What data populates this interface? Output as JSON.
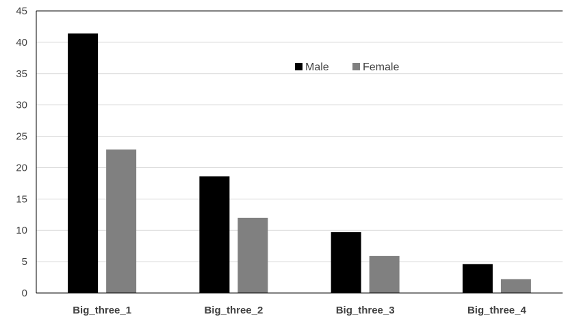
{
  "chart_data": {
    "type": "bar",
    "title": "",
    "xlabel": "",
    "ylabel": "",
    "categories": [
      "Big_three_1",
      "Big_three_2",
      "Big_three_3",
      "Big_three_4"
    ],
    "series": [
      {
        "name": "Male",
        "values": [
          41.4,
          18.6,
          9.7,
          4.6
        ],
        "color": "#000000"
      },
      {
        "name": "Female",
        "values": [
          22.9,
          12.0,
          5.9,
          2.2
        ],
        "color": "#808080"
      }
    ],
    "ylim": [
      0,
      45
    ],
    "yticks": [
      0,
      5,
      10,
      15,
      20,
      25,
      30,
      35,
      40,
      45
    ],
    "grid": true,
    "gridline_color": "#d9d9d9",
    "legend_position": "top-center"
  }
}
